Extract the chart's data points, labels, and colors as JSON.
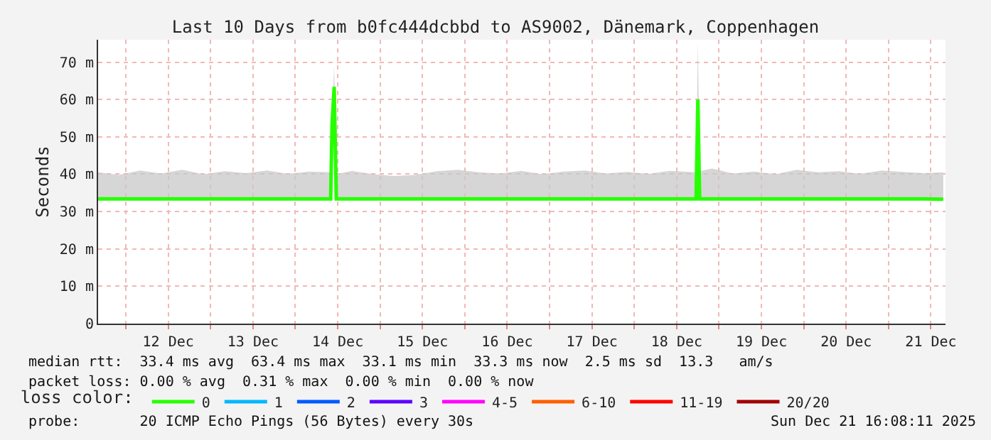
{
  "chart_data": {
    "type": "line",
    "title": "Last 10 Days from b0fc444dcbbd to AS9002, Dänemark, Coppenhagen",
    "ylabel": "Seconds",
    "legend_title": "loss color:",
    "legend": "bottom",
    "grid": true,
    "marker": "none",
    "line_style": "solid",
    "x": [
      "2025-12-11T16:08",
      "2025-12-11T22:00",
      "2025-12-12T04:00",
      "2025-12-12T10:00",
      "2025-12-12T16:00",
      "2025-12-12T22:00",
      "2025-12-13T04:00",
      "2025-12-13T10:00",
      "2025-12-13T16:00",
      "2025-12-13T22:00",
      "2025-12-14T04:00",
      "2025-12-14T10:00",
      "2025-12-14T10:24",
      "2025-12-14T11:00",
      "2025-12-14T11:36",
      "2025-12-14T16:00",
      "2025-12-14T22:00",
      "2025-12-15T04:00",
      "2025-12-15T10:00",
      "2025-12-15T16:00",
      "2025-12-15T22:00",
      "2025-12-16T04:00",
      "2025-12-16T10:00",
      "2025-12-16T16:00",
      "2025-12-16T22:00",
      "2025-12-17T04:00",
      "2025-12-17T10:00",
      "2025-12-17T16:00",
      "2025-12-17T22:00",
      "2025-12-18T04:00",
      "2025-12-18T10:00",
      "2025-12-18T17:30",
      "2025-12-18T18:00",
      "2025-12-18T18:30",
      "2025-12-18T22:00",
      "2025-12-19T04:00",
      "2025-12-19T10:00",
      "2025-12-19T16:00",
      "2025-12-19T22:00",
      "2025-12-20T04:00",
      "2025-12-20T10:00",
      "2025-12-20T16:00",
      "2025-12-20T22:00",
      "2025-12-21T04:00",
      "2025-12-21T10:00",
      "2025-12-21T15:30"
    ],
    "series": [
      {
        "name": "0",
        "color": "#26ff00",
        "values": [
          33.4,
          33.4,
          33.4,
          33.4,
          33.4,
          33.4,
          33.4,
          33.4,
          33.4,
          33.4,
          33.4,
          33.4,
          53.5,
          63.4,
          33.4,
          33.4,
          33.4,
          33.4,
          33.4,
          33.4,
          33.4,
          33.4,
          33.4,
          33.4,
          33.4,
          33.4,
          33.4,
          33.4,
          33.4,
          33.4,
          33.4,
          33.4,
          60.0,
          33.4,
          33.4,
          33.4,
          33.4,
          33.4,
          33.4,
          33.4,
          33.4,
          33.4,
          33.4,
          33.4,
          33.4,
          33.3
        ],
        "lower": [
          33.0,
          33.1,
          33.1,
          33.1,
          33.1,
          33.1,
          33.1,
          33.1,
          33.1,
          33.1,
          33.1,
          33.1,
          52.0,
          60.0,
          33.1,
          33.1,
          33.1,
          33.1,
          33.1,
          33.1,
          33.1,
          33.1,
          33.1,
          33.1,
          33.1,
          33.1,
          33.1,
          33.1,
          33.1,
          33.1,
          33.1,
          33.1,
          37.0,
          33.1,
          33.1,
          33.1,
          33.1,
          33.1,
          33.1,
          33.1,
          33.1,
          33.1,
          33.1,
          33.1,
          33.1,
          33.1
        ],
        "upper": [
          40.5,
          39.8,
          41.0,
          40.2,
          41.2,
          40.0,
          40.8,
          40.3,
          41.0,
          40.1,
          40.7,
          40.5,
          56.0,
          69.0,
          40.0,
          40.9,
          40.0,
          39.5,
          39.8,
          40.8,
          41.2,
          40.5,
          40.2,
          40.9,
          40.0,
          40.7,
          41.0,
          40.2,
          40.6,
          40.1,
          40.9,
          40.5,
          75.5,
          40.8,
          41.5,
          40.2,
          40.7,
          40.0,
          41.2,
          40.5,
          40.8,
          40.1,
          41.0,
          40.6,
          40.3,
          40.5
        ]
      },
      {
        "name": "1",
        "color": "#00b8ff",
        "values": [
          null,
          null,
          null,
          null,
          null,
          null,
          null,
          null,
          null,
          null,
          null,
          null,
          null,
          null,
          null,
          null,
          null,
          null,
          null,
          null,
          null,
          null,
          null,
          null,
          null,
          null,
          null,
          null,
          null,
          null,
          null,
          null,
          null,
          null,
          null,
          null,
          null,
          null,
          null,
          null,
          null,
          null,
          null,
          null,
          null,
          null
        ]
      },
      {
        "name": "2",
        "color": "#0059ff",
        "values": [
          null,
          null,
          null,
          null,
          null,
          null,
          null,
          null,
          null,
          null,
          null,
          null,
          null,
          null,
          null,
          null,
          null,
          null,
          null,
          null,
          null,
          null,
          null,
          null,
          null,
          null,
          null,
          null,
          null,
          null,
          null,
          null,
          null,
          null,
          null,
          null,
          null,
          null,
          null,
          null,
          null,
          null,
          null,
          null,
          null,
          null
        ]
      },
      {
        "name": "3",
        "color": "#5e00ff",
        "values": [
          null,
          null,
          null,
          null,
          null,
          null,
          null,
          null,
          null,
          null,
          null,
          null,
          null,
          null,
          null,
          null,
          null,
          null,
          null,
          null,
          null,
          null,
          null,
          null,
          null,
          null,
          null,
          null,
          null,
          null,
          null,
          null,
          null,
          null,
          null,
          null,
          null,
          null,
          null,
          null,
          null,
          null,
          null,
          null,
          null,
          null
        ]
      },
      {
        "name": "4-5",
        "color": "#ff00ff",
        "values": [
          null,
          null,
          null,
          null,
          null,
          null,
          null,
          null,
          null,
          null,
          null,
          null,
          null,
          null,
          null,
          null,
          null,
          null,
          null,
          null,
          null,
          null,
          null,
          null,
          null,
          null,
          null,
          null,
          null,
          null,
          null,
          null,
          null,
          null,
          null,
          null,
          null,
          null,
          null,
          null,
          null,
          null,
          null,
          null,
          null,
          null
        ]
      },
      {
        "name": "6-10",
        "color": "#ff5e00",
        "values": [
          null,
          null,
          null,
          null,
          null,
          null,
          null,
          null,
          null,
          null,
          null,
          null,
          null,
          null,
          null,
          null,
          null,
          null,
          null,
          null,
          null,
          null,
          null,
          null,
          null,
          null,
          null,
          null,
          null,
          null,
          null,
          null,
          null,
          null,
          null,
          null,
          null,
          null,
          null,
          null,
          null,
          null,
          null,
          null,
          null,
          null
        ]
      },
      {
        "name": "11-19",
        "color": "#ff0000",
        "values": [
          null,
          null,
          null,
          null,
          null,
          null,
          null,
          null,
          null,
          null,
          null,
          null,
          null,
          null,
          null,
          null,
          null,
          null,
          null,
          null,
          null,
          null,
          null,
          null,
          null,
          null,
          null,
          null,
          null,
          null,
          null,
          null,
          null,
          null,
          null,
          null,
          null,
          null,
          null,
          null,
          null,
          null,
          null,
          null,
          null,
          null
        ]
      },
      {
        "name": "20/20",
        "color": "#a10000",
        "values": [
          null,
          null,
          null,
          null,
          null,
          null,
          null,
          null,
          null,
          null,
          null,
          null,
          null,
          null,
          null,
          null,
          null,
          null,
          null,
          null,
          null,
          null,
          null,
          null,
          null,
          null,
          null,
          null,
          null,
          null,
          null,
          null,
          null,
          null,
          null,
          null,
          null,
          null,
          null,
          null,
          null,
          null,
          null,
          null,
          null,
          null
        ]
      }
    ],
    "xlim": [
      "2025-12-11T16:08",
      "2025-12-21T16:08"
    ],
    "xticks": [
      {
        "value": "2025-12-12T00:00",
        "label": null
      },
      {
        "value": "2025-12-12T12:00",
        "label": "12 Dec"
      },
      {
        "value": "2025-12-13T00:00",
        "label": null
      },
      {
        "value": "2025-12-13T12:00",
        "label": "13 Dec"
      },
      {
        "value": "2025-12-14T00:00",
        "label": null
      },
      {
        "value": "2025-12-14T12:00",
        "label": "14 Dec"
      },
      {
        "value": "2025-12-15T00:00",
        "label": null
      },
      {
        "value": "2025-12-15T12:00",
        "label": "15 Dec"
      },
      {
        "value": "2025-12-16T00:00",
        "label": null
      },
      {
        "value": "2025-12-16T12:00",
        "label": "16 Dec"
      },
      {
        "value": "2025-12-17T00:00",
        "label": null
      },
      {
        "value": "2025-12-17T12:00",
        "label": "17 Dec"
      },
      {
        "value": "2025-12-18T00:00",
        "label": null
      },
      {
        "value": "2025-12-18T12:00",
        "label": "18 Dec"
      },
      {
        "value": "2025-12-19T00:00",
        "label": null
      },
      {
        "value": "2025-12-19T12:00",
        "label": "19 Dec"
      },
      {
        "value": "2025-12-20T00:00",
        "label": null
      },
      {
        "value": "2025-12-20T12:00",
        "label": "20 Dec"
      },
      {
        "value": "2025-12-21T00:00",
        "label": null
      },
      {
        "value": "2025-12-21T12:00",
        "label": "21 Dec"
      }
    ],
    "ylim": [
      0,
      76
    ],
    "yticks": [
      0,
      {
        "value": 10,
        "label": "10 m"
      },
      {
        "value": 20,
        "label": "20 m"
      },
      {
        "value": 30,
        "label": "30 m"
      },
      {
        "value": 40,
        "label": "40 m"
      },
      {
        "value": 50,
        "label": "50 m"
      },
      {
        "value": 60,
        "label": "60 m"
      },
      {
        "value": 70,
        "label": "70 m"
      }
    ],
    "annotations": [
      "median rtt:  33.4 ms avg  63.4 ms max  33.1 ms min  33.3 ms now  2.5 ms sd  13.3   am/s",
      "packet loss: 0.00 % avg  0.31 % max  0.00 % min  0.00 % now",
      "probe:       20 ICMP Echo Pings (56 Bytes) every 30s",
      "Sun Dec 21 16:08:11 2025"
    ]
  }
}
